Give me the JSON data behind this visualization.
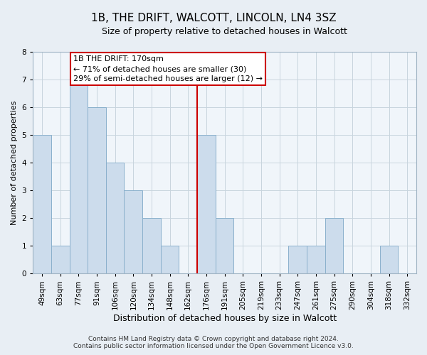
{
  "title": "1B, THE DRIFT, WALCOTT, LINCOLN, LN4 3SZ",
  "subtitle": "Size of property relative to detached houses in Walcott",
  "xlabel": "Distribution of detached houses by size in Walcott",
  "ylabel": "Number of detached properties",
  "bar_labels": [
    "49sqm",
    "63sqm",
    "77sqm",
    "91sqm",
    "106sqm",
    "120sqm",
    "134sqm",
    "148sqm",
    "162sqm",
    "176sqm",
    "191sqm",
    "205sqm",
    "219sqm",
    "233sqm",
    "247sqm",
    "261sqm",
    "275sqm",
    "290sqm",
    "304sqm",
    "318sqm",
    "332sqm"
  ],
  "bar_values": [
    5,
    1,
    7,
    6,
    4,
    3,
    2,
    1,
    0,
    5,
    2,
    0,
    0,
    0,
    1,
    1,
    2,
    0,
    0,
    1,
    0
  ],
  "bar_color": "#ccdcec",
  "bar_edge_color": "#8ab0cc",
  "reference_line_x": 8.5,
  "reference_line_color": "#cc0000",
  "annotation_box_text": "1B THE DRIFT: 170sqm\n← 71% of detached houses are smaller (30)\n29% of semi-detached houses are larger (12) →",
  "annotation_box_edge_color": "#cc0000",
  "ylim": [
    0,
    8
  ],
  "yticks": [
    0,
    1,
    2,
    3,
    4,
    5,
    6,
    7,
    8
  ],
  "footer_text": "Contains HM Land Registry data © Crown copyright and database right 2024.\nContains public sector information licensed under the Open Government Licence v3.0.",
  "background_color": "#e8eef4",
  "plot_background_color": "#f0f5fa",
  "grid_color": "#c8d4de",
  "title_fontsize": 11,
  "subtitle_fontsize": 9,
  "xlabel_fontsize": 9,
  "ylabel_fontsize": 8,
  "tick_fontsize": 7.5,
  "footer_fontsize": 6.5
}
